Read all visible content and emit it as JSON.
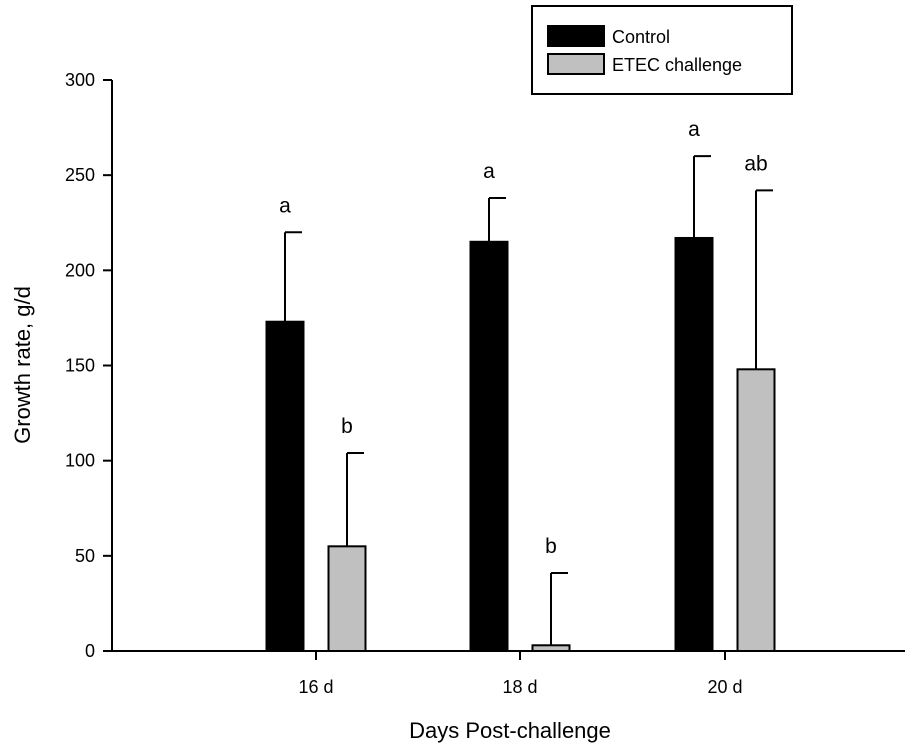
{
  "chart_data": {
    "type": "bar",
    "title": "",
    "xlabel": "Days Post-challenge",
    "ylabel": "Growth rate, g/d",
    "ylim": [
      0,
      300
    ],
    "yticks": [
      "0",
      "50",
      "100",
      "150",
      "200",
      "250",
      "300"
    ],
    "categories": [
      "16 d",
      "18 d",
      "20 d"
    ],
    "legend_position": "top-right",
    "grid": false,
    "series": [
      {
        "name": "Control",
        "color": "#000000",
        "values": [
          173,
          215,
          217
        ],
        "errors": [
          47,
          23,
          43
        ],
        "labels": [
          "a",
          "a",
          "a"
        ]
      },
      {
        "name": "ETEC challenge",
        "color": "#c0c0c0",
        "values": [
          55,
          3,
          148
        ],
        "errors": [
          49,
          38,
          94
        ],
        "labels": [
          "b",
          "b",
          "ab"
        ]
      }
    ]
  }
}
